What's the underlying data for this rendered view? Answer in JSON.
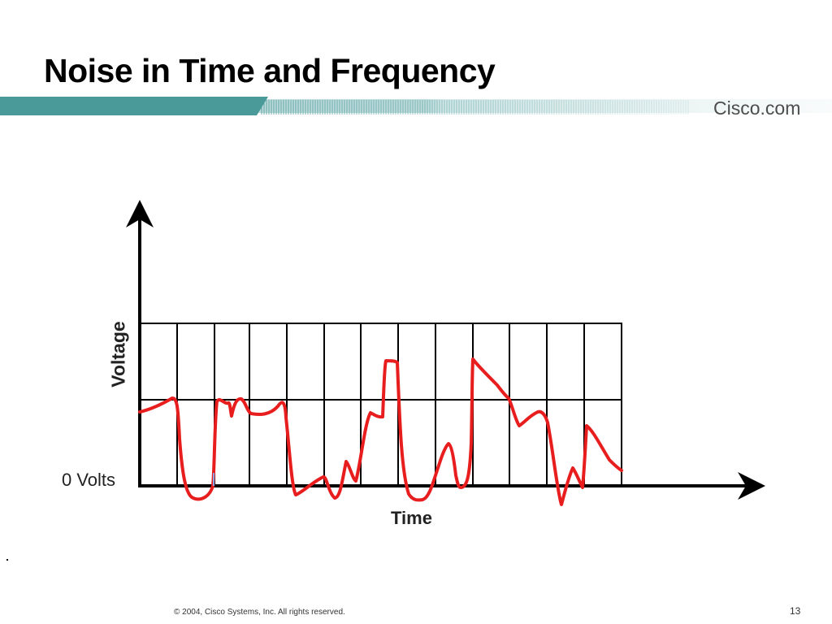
{
  "slide": {
    "title": "Noise in Time and Frequency",
    "brand": "Cisco.com",
    "footer": "© 2004, Cisco Systems, Inc. All rights reserved.",
    "page_number": "13"
  },
  "colors": {
    "banner_teal": "#4a9a9a",
    "signal_red": "#e81e1e",
    "grid_black": "#000000"
  },
  "diagram": {
    "y_axis_label": "Voltage",
    "zero_label": "0 Volts",
    "x_axis_label": "Time"
  }
}
